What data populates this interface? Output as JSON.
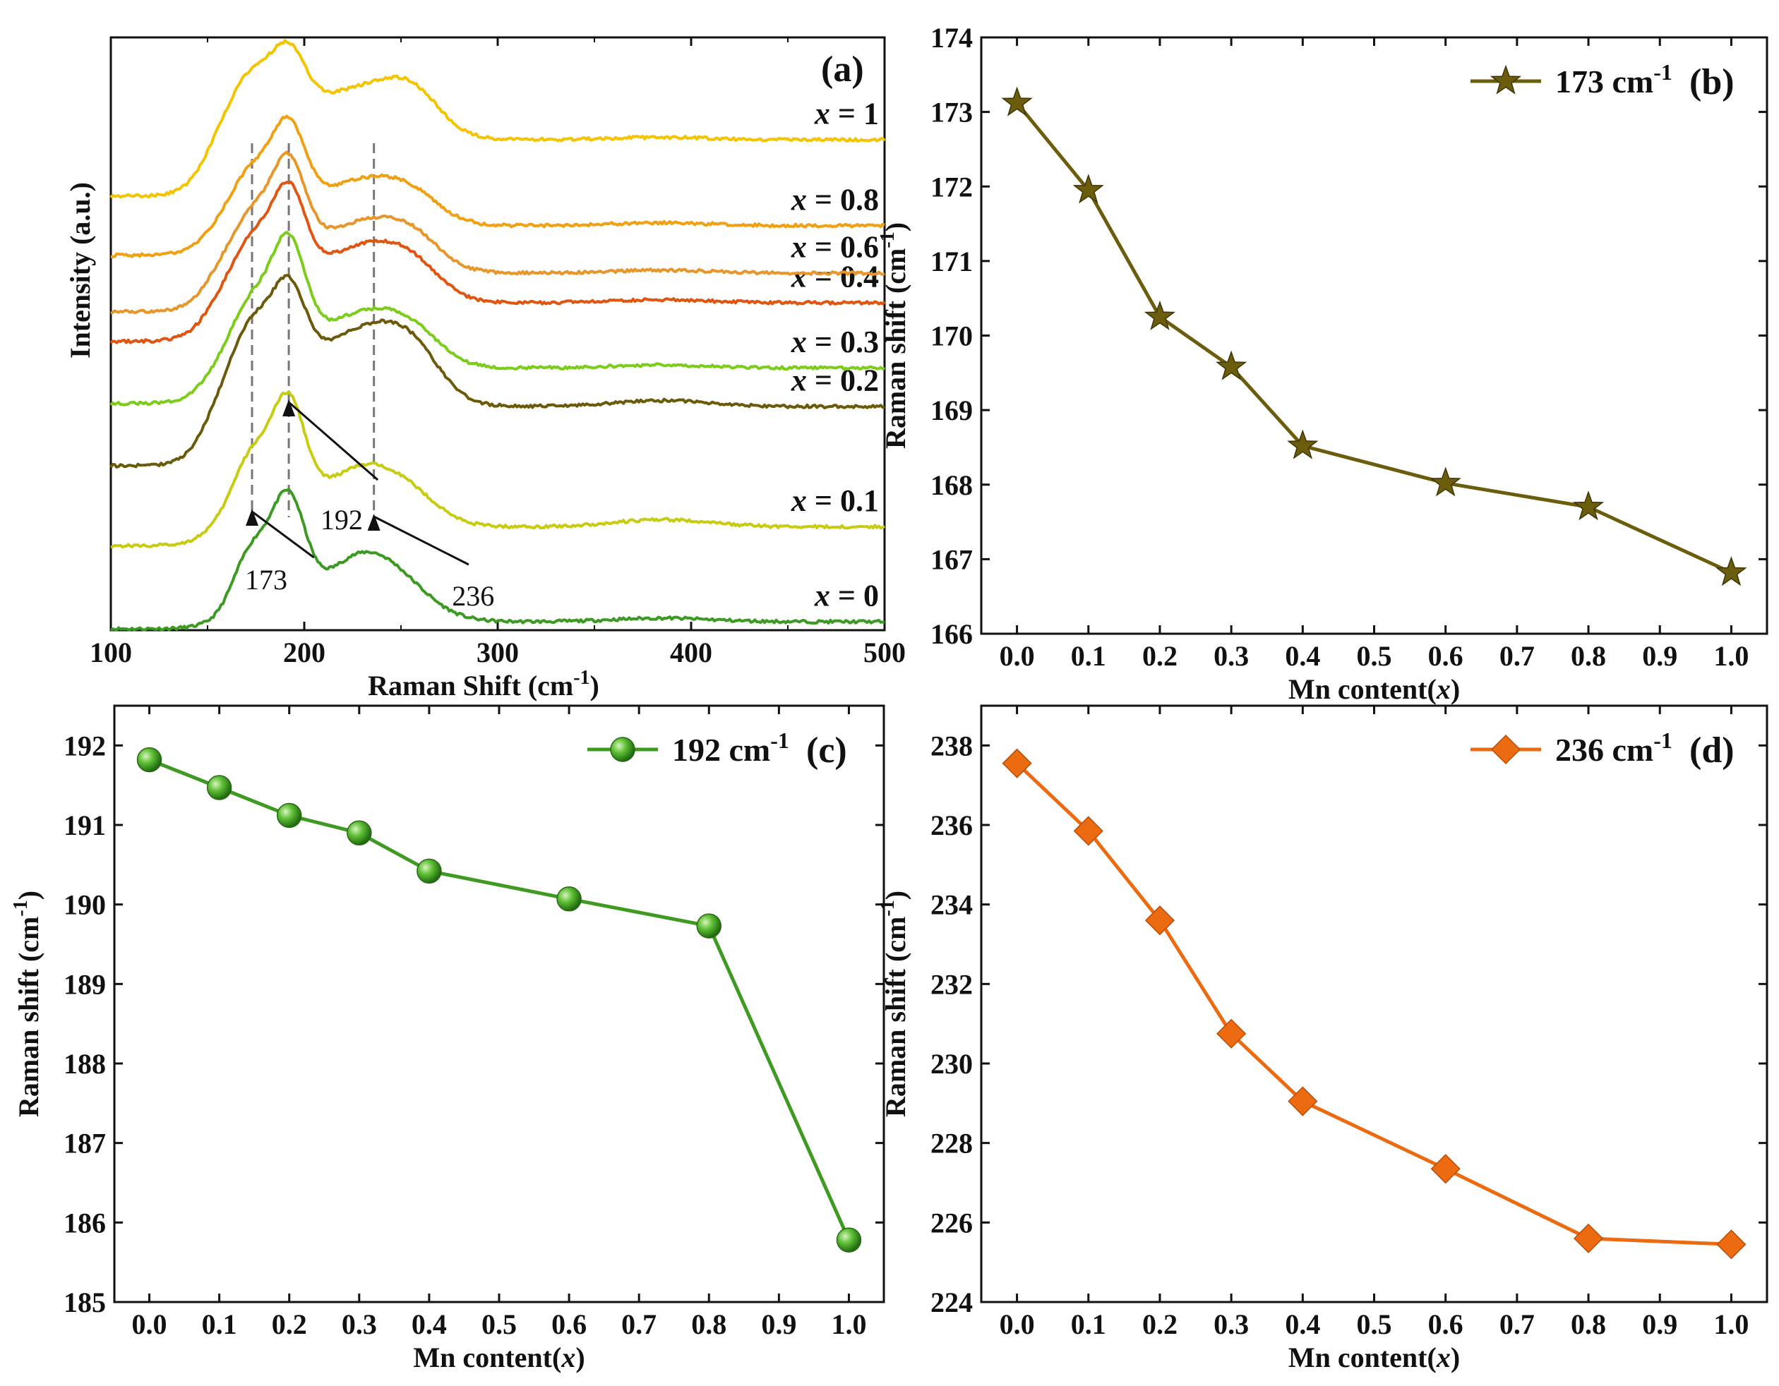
{
  "chart_data": [
    {
      "id": "a",
      "type": "line",
      "panel_label": "(a)",
      "xlabel": "Raman Shift (cm",
      "xlabel_sup": "-1",
      "xlabel_tail": ")",
      "ylabel": "Intensity (a.u.)",
      "xlim": [
        100,
        500
      ],
      "x_ticks": [
        100,
        200,
        300,
        400,
        500
      ],
      "peak_markers": [
        {
          "x": 173,
          "label": "173"
        },
        {
          "x": 192,
          "label": "192"
        },
        {
          "x": 236,
          "label": "236"
        }
      ],
      "series": [
        {
          "name": "x = 0",
          "prefix": "x",
          "value_text": " = 0",
          "color": "#3a9a22",
          "offset": 0.0,
          "tail": 0.12,
          "p173": 1.15,
          "p192": 1.75,
          "p236": 1.1,
          "p380": 0.06
        },
        {
          "name": "x = 0.1",
          "prefix": "x",
          "value_text": " = 0.1",
          "color": "#c8cc10",
          "offset": 1.4,
          "tail": 0.32,
          "p173": 1.05,
          "p192": 1.75,
          "p236": 0.85,
          "p380": 0.12
        },
        {
          "name": "x = 0.2",
          "prefix": "x",
          "value_text": " = 0.2",
          "color": "#6b5a0a",
          "offset": 2.75,
          "tail": 1.0,
          "p173": 0.9,
          "p192": 1.35,
          "p236": 0.75,
          "p380": 0.1
        },
        {
          "name": "x = 0.3",
          "prefix": "x",
          "value_text": " = 0.3",
          "color": "#7ccc1a",
          "offset": 3.8,
          "tail": 0.6,
          "p173": 0.85,
          "p192": 1.7,
          "p236": 0.6,
          "p380": 0.05
        },
        {
          "name": "x = 0.4",
          "prefix": "x",
          "value_text": " = 0.4",
          "color": "#e05510",
          "offset": 4.85,
          "tail": 0.65,
          "p173": 0.75,
          "p192": 1.45,
          "p236": 0.6,
          "p380": 0.05
        },
        {
          "name": "x = 0.6",
          "prefix": "x",
          "value_text": " = 0.6",
          "color": "#e8962a",
          "offset": 5.35,
          "tail": 0.65,
          "p173": 0.7,
          "p192": 1.45,
          "p236": 0.5,
          "p380": 0.05
        },
        {
          "name": "x = 0.8",
          "prefix": "x",
          "value_text": " = 0.8",
          "color": "#f0a010",
          "offset": 6.3,
          "tail": 0.5,
          "p173": 0.7,
          "p192": 1.35,
          "p236": 0.5,
          "p380": 0.05
        },
        {
          "name": "x = 1",
          "prefix": "x",
          "value_text": " = 1",
          "color": "#f5c400",
          "offset": 7.3,
          "tail": 0.95,
          "p173": 0.65,
          "p192": 0.95,
          "p236": 0.35,
          "p380": 0.04
        }
      ]
    },
    {
      "id": "b",
      "type": "line",
      "panel_label": "(b)",
      "xlabel": "Mn content(",
      "xlabel_var": "x",
      "xlabel_tail": ")",
      "ylabel": "Raman shift (cm",
      "ylabel_sup": "-1",
      "ylabel_tail": ")",
      "xlim": [
        -0.05,
        1.05
      ],
      "ylim": [
        166,
        174
      ],
      "x_ticks": [
        "0.0",
        "0.1",
        "0.2",
        "0.3",
        "0.4",
        "0.5",
        "0.6",
        "0.7",
        "0.8",
        "0.9",
        "1.0"
      ],
      "y_ticks": [
        166,
        167,
        168,
        169,
        170,
        171,
        172,
        173,
        174
      ],
      "marker": "star",
      "color": "#6b5d0c",
      "legend": {
        "text": "173 cm",
        "sup": "-1"
      },
      "x": [
        0.0,
        0.1,
        0.2,
        0.3,
        0.4,
        0.6,
        0.8,
        1.0
      ],
      "y": [
        173.12,
        171.95,
        170.25,
        169.58,
        168.52,
        168.02,
        167.7,
        166.82
      ]
    },
    {
      "id": "c",
      "type": "line",
      "panel_label": "(c)",
      "xlabel": "Mn content(",
      "xlabel_var": "x",
      "xlabel_tail": ")",
      "ylabel": "Raman shift (cm",
      "ylabel_sup": "-1",
      "ylabel_tail": ")",
      "xlim": [
        -0.05,
        1.05
      ],
      "ylim": [
        185,
        192.5
      ],
      "x_ticks": [
        "0.0",
        "0.1",
        "0.2",
        "0.3",
        "0.4",
        "0.5",
        "0.6",
        "0.7",
        "0.8",
        "0.9",
        "1.0"
      ],
      "y_ticks": [
        185,
        186,
        187,
        188,
        189,
        190,
        191,
        192
      ],
      "marker": "sphere",
      "color": "#3f9a22",
      "legend": {
        "text": "192 cm",
        "sup": "-1"
      },
      "x": [
        0.0,
        0.1,
        0.2,
        0.3,
        0.4,
        0.6,
        0.8,
        1.0
      ],
      "y": [
        191.82,
        191.47,
        191.12,
        190.9,
        190.42,
        190.07,
        189.73,
        185.78
      ]
    },
    {
      "id": "d",
      "type": "line",
      "panel_label": "(d)",
      "xlabel": "Mn content(",
      "xlabel_var": "x",
      "xlabel_tail": ")",
      "ylabel": "Raman shift (cm",
      "ylabel_sup": "-1",
      "ylabel_tail": ")",
      "xlim": [
        -0.05,
        1.05
      ],
      "ylim": [
        224,
        239
      ],
      "x_ticks": [
        "0.0",
        "0.1",
        "0.2",
        "0.3",
        "0.4",
        "0.5",
        "0.6",
        "0.7",
        "0.8",
        "0.9",
        "1.0"
      ],
      "y_ticks": [
        224,
        226,
        228,
        230,
        232,
        234,
        236,
        238
      ],
      "marker": "diamond",
      "color": "#ec6a10",
      "legend": {
        "text": "236 cm",
        "sup": "-1"
      },
      "x": [
        0.0,
        0.1,
        0.2,
        0.3,
        0.4,
        0.6,
        0.8,
        1.0
      ],
      "y": [
        237.55,
        235.85,
        233.6,
        230.75,
        229.05,
        227.35,
        225.6,
        225.45
      ]
    }
  ]
}
